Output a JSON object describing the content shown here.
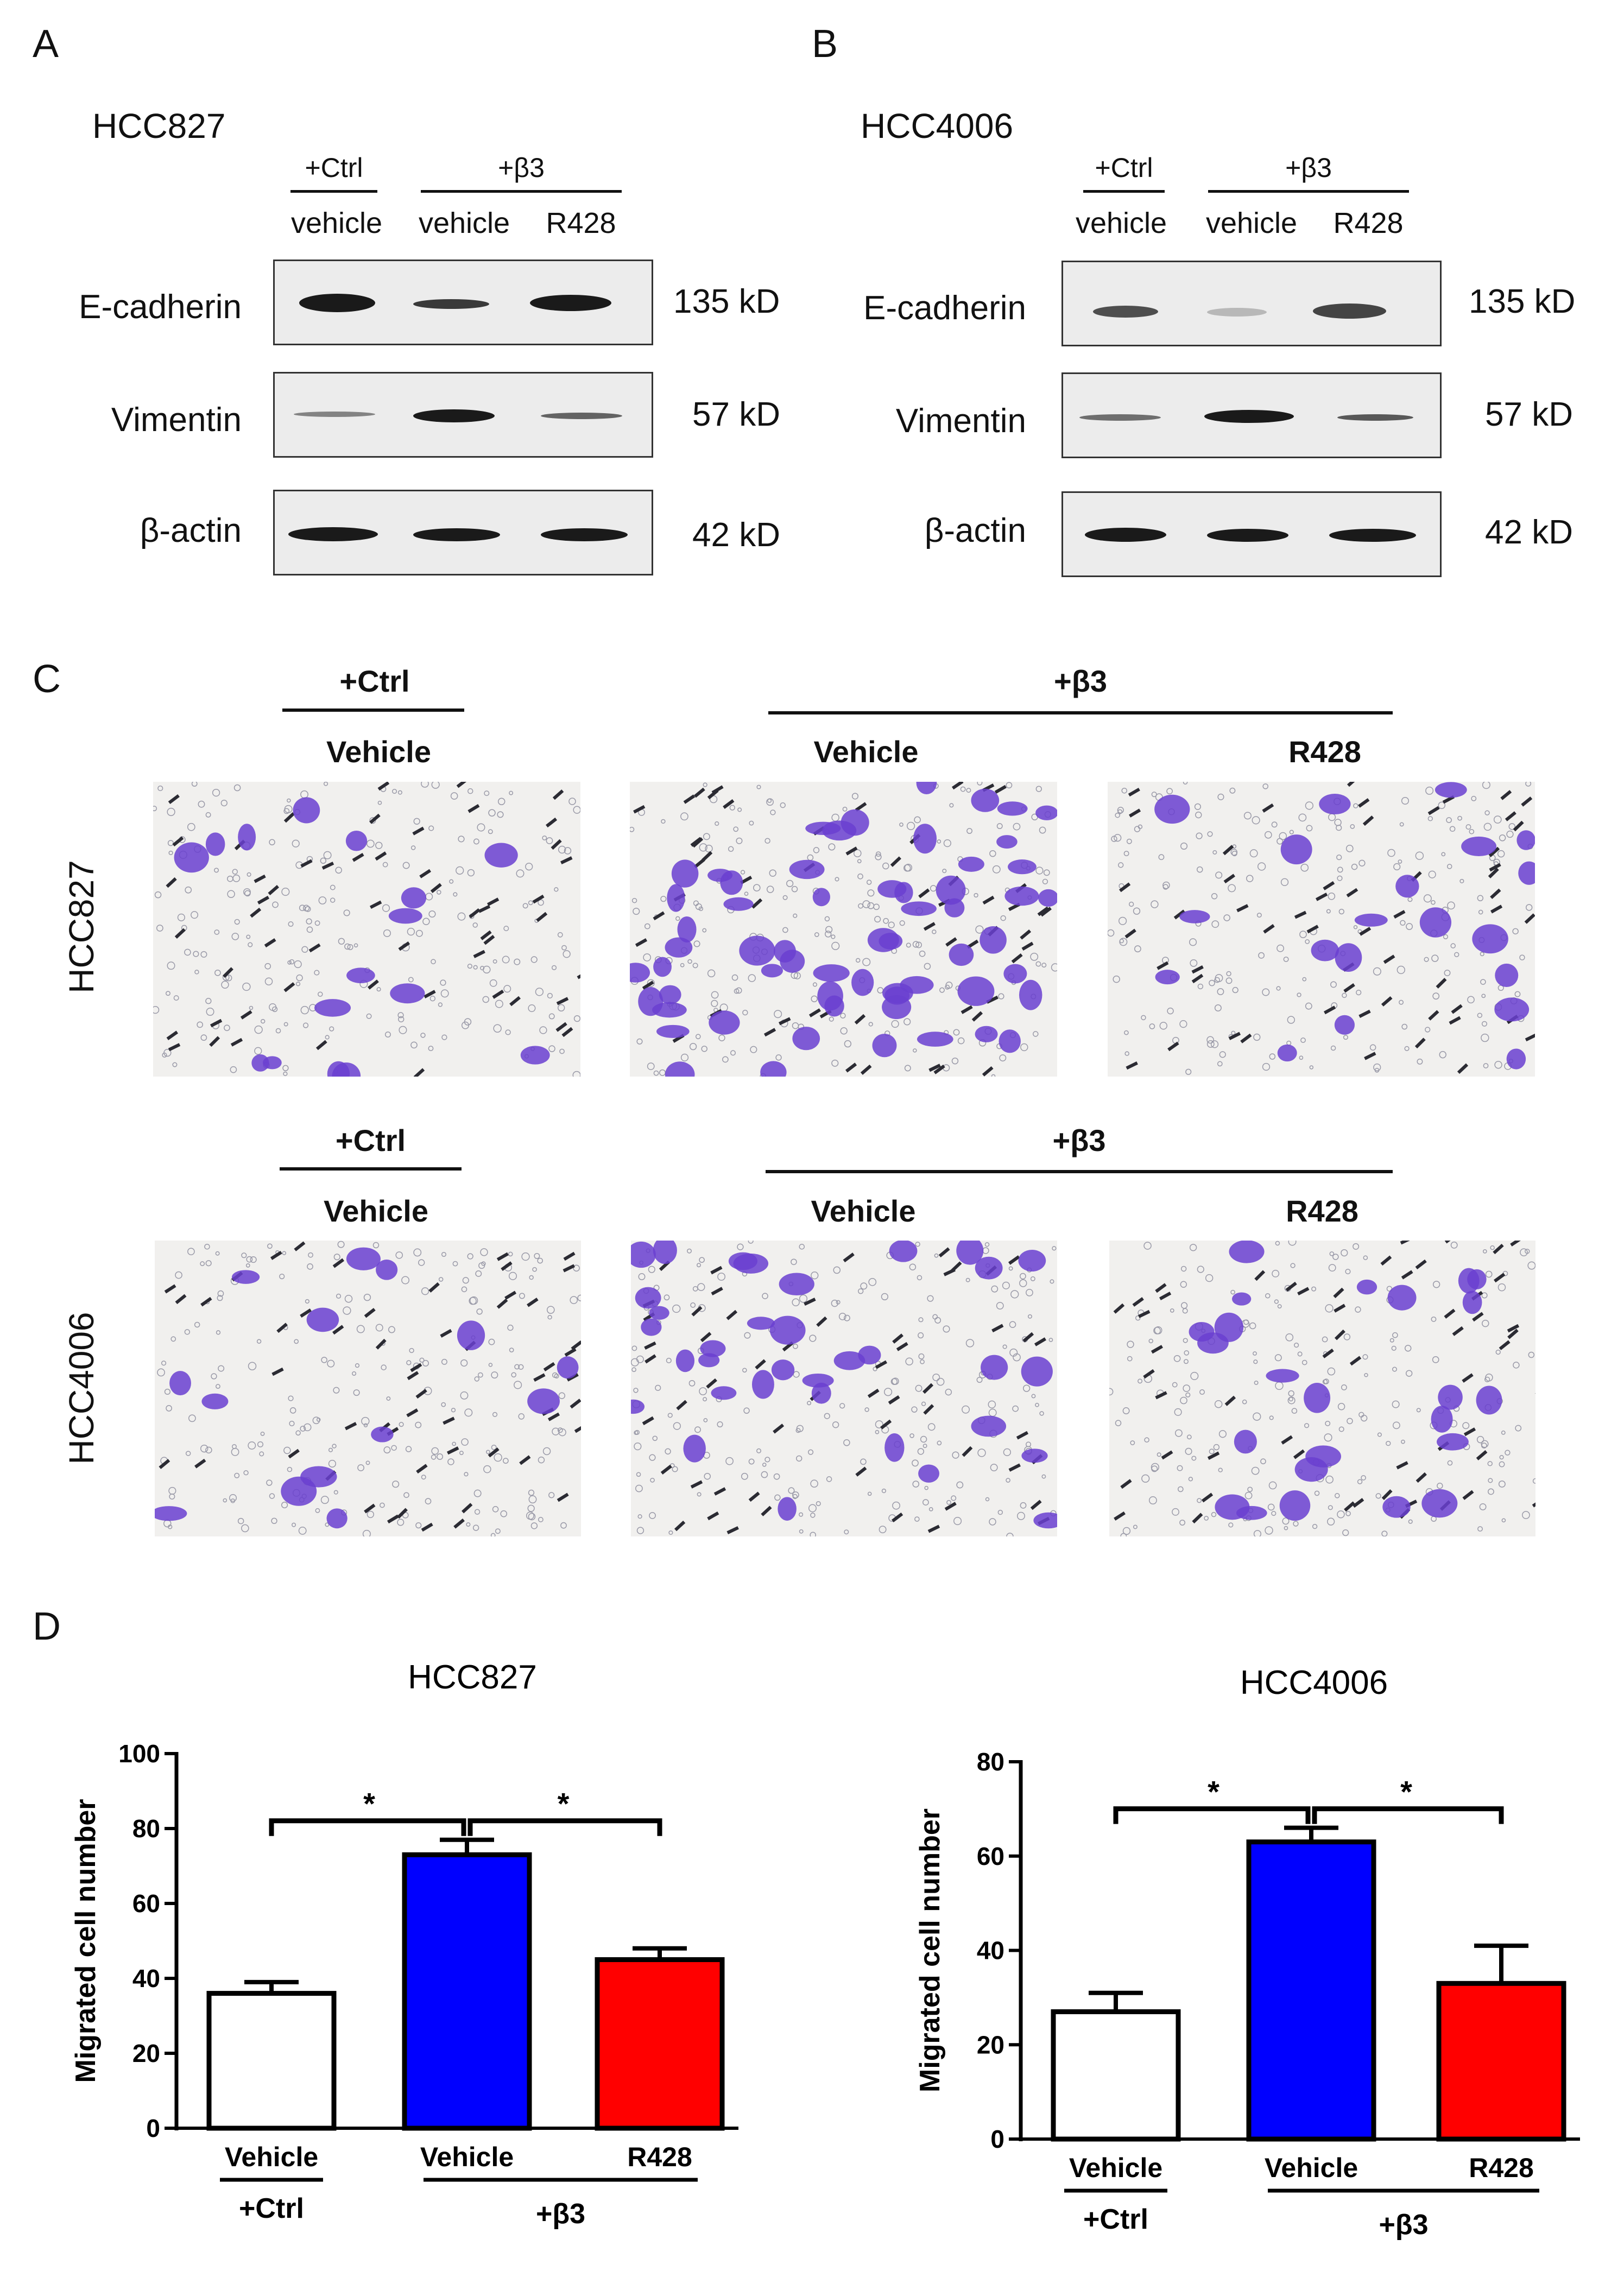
{
  "panels": {
    "a": "A",
    "b": "B",
    "c": "C",
    "d": "D"
  },
  "blots": [
    {
      "cell_line": "HCC827",
      "groups": {
        "ctrl": "+Ctrl",
        "beta3": "+β3"
      },
      "lanes": [
        "vehicle",
        "vehicle",
        "R428"
      ],
      "rows": [
        {
          "protein": "E-cadherin",
          "kd": "135 kD"
        },
        {
          "protein": "Vimentin",
          "kd": "57 kD"
        },
        {
          "protein": "β-actin",
          "kd": "42 kD"
        }
      ]
    },
    {
      "cell_line": "HCC4006",
      "groups": {
        "ctrl": "+Ctrl",
        "beta3": "+β3"
      },
      "lanes": [
        "vehicle",
        "vehicle",
        "R428"
      ],
      "rows": [
        {
          "protein": "E-cadherin",
          "kd": "135 kD"
        },
        {
          "protein": "Vimentin",
          "kd": "57 kD"
        },
        {
          "protein": "β-actin",
          "kd": "42 kD"
        }
      ]
    }
  ],
  "migration": {
    "rows": [
      {
        "cell_line": "HCC827",
        "ctrl": "+Ctrl",
        "beta3": "+β3",
        "conditions": [
          "Vehicle",
          "Vehicle",
          "R428"
        ]
      },
      {
        "cell_line": "HCC4006",
        "ctrl": "+Ctrl",
        "beta3": "+β3",
        "conditions": [
          "Vehicle",
          "Vehicle",
          "R428"
        ]
      }
    ]
  },
  "colors": {
    "ctrl": "#ffffff",
    "beta3_vehicle": "#0000ff",
    "beta3_r428": "#ff0000",
    "stain": "#6a3fd0"
  },
  "chart_data": [
    {
      "type": "bar",
      "title": "HCC827",
      "ylabel": "Migrated cell number",
      "xlabel": "",
      "categories": [
        "Vehicle",
        "Vehicle",
        "R428"
      ],
      "values": [
        36,
        73,
        45
      ],
      "errors": [
        3,
        4,
        3
      ],
      "ylim": [
        0,
        100
      ],
      "yticks": [
        0,
        20,
        40,
        60,
        80,
        100
      ],
      "group_labels": {
        "ctrl": "+Ctrl",
        "beta3": "+β3"
      },
      "significance": [
        "*",
        "*"
      ]
    },
    {
      "type": "bar",
      "title": "HCC4006",
      "ylabel": "Migrated cell number",
      "xlabel": "",
      "categories": [
        "Vehicle",
        "Vehicle",
        "R428"
      ],
      "values": [
        27,
        63,
        33
      ],
      "errors": [
        4,
        3,
        8
      ],
      "ylim": [
        0,
        80
      ],
      "yticks": [
        0,
        20,
        40,
        60,
        80
      ],
      "group_labels": {
        "ctrl": "+Ctrl",
        "beta3": "+β3"
      },
      "significance": [
        "*",
        "*"
      ]
    }
  ]
}
